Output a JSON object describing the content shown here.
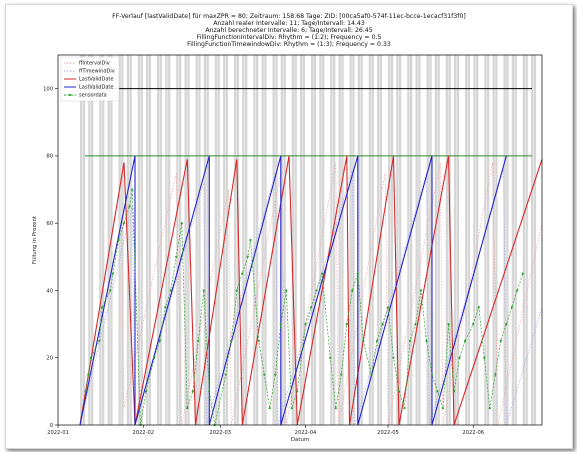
{
  "chart_data": {
    "type": "line",
    "title_lines": [
      "FF-Verlauf [lastValidDate] für maxZPR = 80; Zeitraum: 158.68 Tage; ZID: [00ca5af0-574f-11ec-bcce-1ecacf31f3f0]",
      "Anzahl realer Intervalle: 11; Tage/Intervall: 14.43",
      "Anzahl berechneter Intervalle: 6; Tage/Intervall: 26.45",
      "FillingFunctionIntervalDiv: Rhythm = (1:2); Frequency = 0.5",
      "FillingFunctionTimewindowDiv: Rhythm = (1:3); Frequency = 0.33"
    ],
    "xlabel": "Datum",
    "ylabel": "Füllung in Prozent",
    "xlim": [
      "2022-01-01",
      "2022-06-26"
    ],
    "ylim": [
      0,
      110
    ],
    "x_ticks": [
      "2022-01",
      "2022-02",
      "2022-03",
      "2022-04",
      "2022-05",
      "2022-06"
    ],
    "y_ticks": [
      0,
      20,
      40,
      60,
      80,
      100
    ],
    "legend_position": "top-left",
    "legend": [
      {
        "label": "fflntervalDiv",
        "color": "#e8a0a0",
        "style": "dotted"
      },
      {
        "label": "ffTimewindDiv",
        "color": "#a0a0e0",
        "style": "dotted"
      },
      {
        "label": "LastValidDate",
        "color": "#d62728",
        "style": "solid"
      },
      {
        "label": "LastValidDate",
        "color": "#2222cc",
        "style": "solid"
      },
      {
        "label": "sensordata",
        "color": "#2ca02c",
        "style": "dashed-marker"
      }
    ],
    "h_lines": [
      {
        "y": 100,
        "color": "#000000"
      },
      {
        "y": 80,
        "color": "#2e8b2e"
      }
    ],
    "shaded_bands_color": "#cfcfcf",
    "series": [
      {
        "color": "#d62728",
        "points": [
          [
            "2022-01-09",
            0
          ],
          [
            "2022-01-25",
            78
          ],
          [
            "2022-01-29",
            0
          ],
          [
            "2022-02-17",
            79
          ],
          [
            "2022-02-20",
            0
          ],
          [
            "2022-03-07",
            79
          ],
          [
            "2022-03-09",
            0
          ],
          [
            "2022-03-26",
            80
          ],
          [
            "2022-03-29",
            0
          ],
          [
            "2022-04-16",
            80
          ],
          [
            "2022-04-17",
            0
          ],
          [
            "2022-05-03",
            80
          ],
          [
            "2022-05-05",
            0
          ],
          [
            "2022-05-23",
            80
          ],
          [
            "2022-05-25",
            0
          ],
          [
            "2022-06-26",
            79
          ]
        ]
      },
      {
        "color": "#2222cc",
        "points": [
          [
            "2022-01-09",
            0
          ],
          [
            "2022-01-29",
            80
          ],
          [
            "2022-01-29",
            0
          ],
          [
            "2022-02-25",
            80
          ],
          [
            "2022-02-25",
            0
          ],
          [
            "2022-03-23",
            80
          ],
          [
            "2022-03-23",
            0
          ],
          [
            "2022-04-20",
            80
          ],
          [
            "2022-04-20",
            0
          ],
          [
            "2022-05-17",
            80
          ],
          [
            "2022-05-17",
            0
          ],
          [
            "2022-06-13",
            80
          ]
        ]
      },
      {
        "color": "#f2a6a6",
        "points": [
          [
            "2022-01-09",
            0
          ],
          [
            "2022-01-24",
            60
          ],
          [
            "2022-01-25",
            5
          ],
          [
            "2022-02-13",
            75
          ],
          [
            "2022-02-15",
            0
          ],
          [
            "2022-03-04",
            70
          ],
          [
            "2022-03-05",
            0
          ],
          [
            "2022-03-23",
            75
          ],
          [
            "2022-03-25",
            0
          ],
          [
            "2022-04-12",
            78
          ],
          [
            "2022-04-13",
            0
          ],
          [
            "2022-04-30",
            75
          ],
          [
            "2022-05-01",
            0
          ],
          [
            "2022-05-20",
            78
          ],
          [
            "2022-05-21",
            0
          ],
          [
            "2022-06-08",
            78
          ],
          [
            "2022-06-10",
            0
          ],
          [
            "2022-06-26",
            60
          ]
        ]
      },
      {
        "color": "#a8a8ea",
        "points": [
          [
            "2022-01-09",
            0
          ],
          [
            "2022-01-28",
            65
          ],
          [
            "2022-01-29",
            0
          ],
          [
            "2022-02-23",
            72
          ],
          [
            "2022-02-24",
            0
          ],
          [
            "2022-03-21",
            75
          ],
          [
            "2022-03-22",
            0
          ],
          [
            "2022-04-18",
            76
          ],
          [
            "2022-04-19",
            0
          ],
          [
            "2022-05-15",
            75
          ],
          [
            "2022-05-16",
            0
          ],
          [
            "2022-06-12",
            76
          ],
          [
            "2022-06-13",
            0
          ],
          [
            "2022-06-26",
            35
          ]
        ]
      },
      {
        "color": "#2ca02c",
        "markers": true,
        "points": [
          [
            "2022-01-11",
            10
          ],
          [
            "2022-01-12",
            15
          ],
          [
            "2022-01-13",
            20
          ],
          [
            "2022-01-16",
            25
          ],
          [
            "2022-01-17",
            35
          ],
          [
            "2022-01-20",
            40
          ],
          [
            "2022-01-21",
            45
          ],
          [
            "2022-01-23",
            55
          ],
          [
            "2022-01-25",
            60
          ],
          [
            "2022-01-27",
            65
          ],
          [
            "2022-01-28",
            70
          ],
          [
            "2022-01-31",
            0
          ],
          [
            "2022-02-02",
            10
          ],
          [
            "2022-02-05",
            20
          ],
          [
            "2022-02-07",
            25
          ],
          [
            "2022-02-09",
            35
          ],
          [
            "2022-02-11",
            40
          ],
          [
            "2022-02-13",
            50
          ],
          [
            "2022-02-15",
            60
          ],
          [
            "2022-02-17",
            5
          ],
          [
            "2022-02-19",
            10
          ],
          [
            "2022-02-21",
            25
          ],
          [
            "2022-02-23",
            40
          ],
          [
            "2022-02-25",
            10
          ],
          [
            "2022-02-27",
            0
          ],
          [
            "2022-03-03",
            15
          ],
          [
            "2022-03-05",
            25
          ],
          [
            "2022-03-07",
            40
          ],
          [
            "2022-03-09",
            45
          ],
          [
            "2022-03-11",
            50
          ],
          [
            "2022-03-12",
            55
          ],
          [
            "2022-03-15",
            25
          ],
          [
            "2022-03-17",
            15
          ],
          [
            "2022-03-19",
            5
          ],
          [
            "2022-03-21",
            15
          ],
          [
            "2022-03-23",
            30
          ],
          [
            "2022-03-25",
            40
          ],
          [
            "2022-03-27",
            5
          ],
          [
            "2022-03-29",
            10
          ],
          [
            "2022-04-01",
            30
          ],
          [
            "2022-04-03",
            35
          ],
          [
            "2022-04-05",
            40
          ],
          [
            "2022-04-07",
            45
          ],
          [
            "2022-04-10",
            20
          ],
          [
            "2022-04-12",
            5
          ],
          [
            "2022-04-14",
            15
          ],
          [
            "2022-04-16",
            30
          ],
          [
            "2022-04-18",
            40
          ],
          [
            "2022-04-20",
            45
          ],
          [
            "2022-04-22",
            25
          ],
          [
            "2022-04-25",
            15
          ],
          [
            "2022-04-27",
            25
          ],
          [
            "2022-04-29",
            30
          ],
          [
            "2022-05-01",
            35
          ],
          [
            "2022-05-03",
            20
          ],
          [
            "2022-05-05",
            10
          ],
          [
            "2022-05-07",
            5
          ],
          [
            "2022-05-09",
            25
          ],
          [
            "2022-05-11",
            30
          ],
          [
            "2022-05-13",
            40
          ],
          [
            "2022-05-15",
            25
          ],
          [
            "2022-05-17",
            15
          ],
          [
            "2022-05-19",
            10
          ],
          [
            "2022-05-21",
            5
          ],
          [
            "2022-05-23",
            30
          ],
          [
            "2022-05-25",
            10
          ],
          [
            "2022-05-27",
            20
          ],
          [
            "2022-05-29",
            25
          ],
          [
            "2022-06-01",
            30
          ],
          [
            "2022-06-03",
            35
          ],
          [
            "2022-06-05",
            20
          ],
          [
            "2022-06-07",
            5
          ],
          [
            "2022-06-09",
            15
          ],
          [
            "2022-06-11",
            25
          ],
          [
            "2022-06-13",
            30
          ],
          [
            "2022-06-15",
            35
          ],
          [
            "2022-06-17",
            40
          ],
          [
            "2022-06-19",
            45
          ]
        ]
      }
    ]
  }
}
